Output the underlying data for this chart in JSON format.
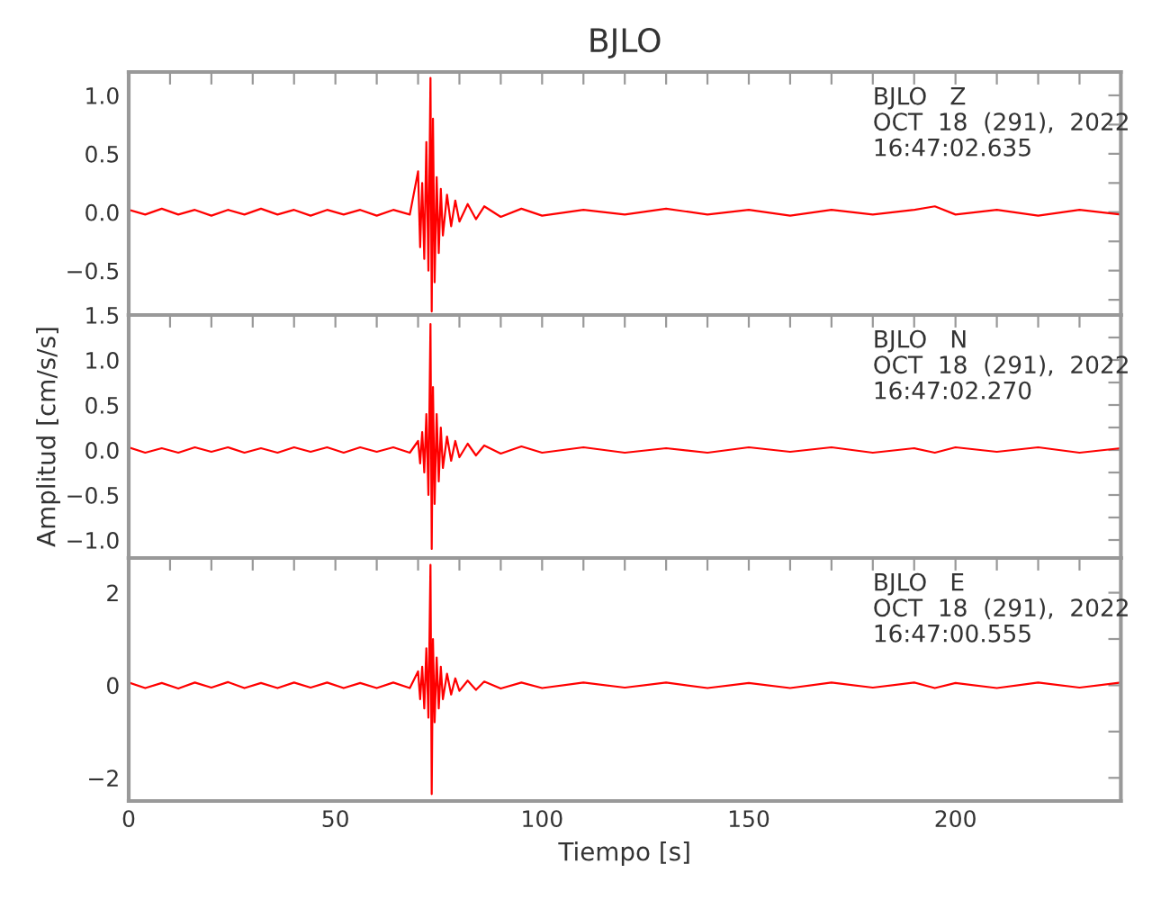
{
  "chart_data": [
    {
      "type": "line",
      "title": "BJLO",
      "annotations": [
        "BJLO   Z\nOCT  18  (291),  2022\n16:47:02.635"
      ],
      "tick_labels": "y",
      "grid": false,
      "marker": "none",
      "line_style": "solid",
      "xlim": [
        0,
        240
      ],
      "xticks": [
        0,
        {
          "value": 10,
          "label": null
        },
        {
          "value": 20,
          "label": null
        },
        {
          "value": 30,
          "label": null
        },
        {
          "value": 40,
          "label": null
        },
        50,
        {
          "value": 60,
          "label": null
        },
        {
          "value": 70,
          "label": null
        },
        {
          "value": 80,
          "label": null
        },
        {
          "value": 90,
          "label": null
        },
        100,
        {
          "value": 110,
          "label": null
        },
        {
          "value": 120,
          "label": null
        },
        {
          "value": 130,
          "label": null
        },
        {
          "value": 140,
          "label": null
        },
        150,
        {
          "value": 160,
          "label": null
        },
        {
          "value": 170,
          "label": null
        },
        {
          "value": 180,
          "label": null
        },
        {
          "value": 190,
          "label": null
        },
        200,
        {
          "value": 210,
          "label": null
        },
        {
          "value": 220,
          "label": null
        },
        {
          "value": 230,
          "label": null
        }
      ],
      "ylim": [
        -0.88,
        1.2
      ],
      "yticks": [
        {
          "value": -0.75,
          "label": null
        },
        {
          "value": -0.5,
          "label": "−0.5"
        },
        {
          "value": -0.25,
          "label": null
        },
        {
          "value": 0,
          "label": "0.0"
        },
        {
          "value": 0.25,
          "label": null
        },
        0.5,
        {
          "value": 0.75,
          "label": null
        },
        {
          "value": 1.0,
          "label": "1.0"
        }
      ],
      "x": [
        0,
        4,
        8,
        12,
        16,
        20,
        24,
        28,
        32,
        36,
        40,
        44,
        48,
        52,
        56,
        60,
        64,
        68,
        70,
        70.5,
        71,
        71.5,
        72,
        72.5,
        73,
        73.3,
        73.6,
        74,
        74.5,
        75,
        75.5,
        76,
        77,
        78,
        79,
        80,
        82,
        84,
        86,
        90,
        95,
        100,
        110,
        120,
        130,
        140,
        150,
        160,
        170,
        180,
        190,
        195,
        200,
        210,
        220,
        230,
        240
      ],
      "series": [
        {
          "color": "#ff0000",
          "values": [
            0.02,
            -0.02,
            0.03,
            -0.02,
            0.02,
            -0.03,
            0.02,
            -0.02,
            0.03,
            -0.02,
            0.02,
            -0.03,
            0.02,
            -0.02,
            0.02,
            -0.03,
            0.02,
            -0.02,
            0.35,
            -0.3,
            0.25,
            -0.4,
            0.6,
            -0.5,
            1.15,
            -0.85,
            0.8,
            -0.6,
            0.3,
            -0.35,
            0.2,
            -0.2,
            0.15,
            -0.12,
            0.1,
            -0.08,
            0.07,
            -0.06,
            0.05,
            -0.04,
            0.03,
            -0.03,
            0.02,
            -0.02,
            0.03,
            -0.02,
            0.02,
            -0.03,
            0.02,
            -0.02,
            0.02,
            0.05,
            -0.02,
            0.02,
            -0.03,
            0.02,
            -0.02
          ]
        }
      ]
    },
    {
      "type": "line",
      "ylabel": "Amplitud [cm/s/s]",
      "annotations": [
        "BJLO   N\nOCT  18  (291),  2022\n16:47:02.270"
      ],
      "tick_labels": "y",
      "grid": false,
      "marker": "none",
      "line_style": "solid",
      "xlim": [
        0,
        240
      ],
      "xticks": [
        0,
        {
          "value": 10,
          "label": null
        },
        {
          "value": 20,
          "label": null
        },
        {
          "value": 30,
          "label": null
        },
        {
          "value": 40,
          "label": null
        },
        50,
        {
          "value": 60,
          "label": null
        },
        {
          "value": 70,
          "label": null
        },
        {
          "value": 80,
          "label": null
        },
        {
          "value": 90,
          "label": null
        },
        100,
        {
          "value": 110,
          "label": null
        },
        {
          "value": 120,
          "label": null
        },
        {
          "value": 130,
          "label": null
        },
        {
          "value": 140,
          "label": null
        },
        150,
        {
          "value": 160,
          "label": null
        },
        {
          "value": 170,
          "label": null
        },
        {
          "value": 180,
          "label": null
        },
        {
          "value": 190,
          "label": null
        },
        200,
        {
          "value": 210,
          "label": null
        },
        {
          "value": 220,
          "label": null
        },
        {
          "value": 230,
          "label": null
        }
      ],
      "ylim": [
        -1.2,
        1.5
      ],
      "yticks": [
        {
          "value": -1.0,
          "label": "−1.0"
        },
        {
          "value": -0.75,
          "label": null
        },
        {
          "value": -0.5,
          "label": "−0.5"
        },
        {
          "value": -0.25,
          "label": null
        },
        {
          "value": 0,
          "label": "0.0"
        },
        {
          "value": 0.25,
          "label": null
        },
        0.5,
        {
          "value": 0.75,
          "label": null
        },
        {
          "value": 1.0,
          "label": "1.0"
        },
        {
          "value": 1.25,
          "label": null
        },
        1.5
      ],
      "x": [
        0,
        4,
        8,
        12,
        16,
        20,
        24,
        28,
        32,
        36,
        40,
        44,
        48,
        52,
        56,
        60,
        64,
        68,
        70,
        70.5,
        71,
        71.5,
        72,
        72.5,
        73,
        73.3,
        73.6,
        74,
        74.5,
        75,
        75.5,
        76,
        77,
        78,
        79,
        80,
        82,
        84,
        86,
        90,
        95,
        100,
        110,
        120,
        130,
        140,
        150,
        160,
        170,
        180,
        190,
        195,
        200,
        210,
        220,
        230,
        240
      ],
      "series": [
        {
          "color": "#ff0000",
          "values": [
            0.03,
            -0.03,
            0.02,
            -0.03,
            0.03,
            -0.02,
            0.03,
            -0.03,
            0.02,
            -0.03,
            0.03,
            -0.02,
            0.03,
            -0.03,
            0.03,
            -0.02,
            0.03,
            -0.03,
            0.1,
            -0.15,
            0.2,
            -0.25,
            0.4,
            -0.5,
            1.4,
            -1.1,
            0.7,
            -0.6,
            0.4,
            -0.35,
            0.25,
            -0.2,
            0.15,
            -0.12,
            0.1,
            -0.08,
            0.07,
            -0.06,
            0.05,
            -0.04,
            0.04,
            -0.03,
            0.03,
            -0.03,
            0.02,
            -0.03,
            0.03,
            -0.02,
            0.03,
            -0.03,
            0.02,
            -0.03,
            0.03,
            -0.02,
            0.03,
            -0.03,
            0.02
          ]
        }
      ]
    },
    {
      "type": "line",
      "xlabel": "Tiempo [s]",
      "annotations": [
        "BJLO   E\nOCT  18  (291),  2022\n16:47:00.555"
      ],
      "grid": false,
      "marker": "none",
      "line_style": "solid",
      "xlim": [
        0,
        240
      ],
      "xticks": [
        0,
        {
          "value": 10,
          "label": null
        },
        {
          "value": 20,
          "label": null
        },
        {
          "value": 30,
          "label": null
        },
        {
          "value": 40,
          "label": null
        },
        50,
        {
          "value": 60,
          "label": null
        },
        {
          "value": 70,
          "label": null
        },
        {
          "value": 80,
          "label": null
        },
        {
          "value": 90,
          "label": null
        },
        100,
        {
          "value": 110,
          "label": null
        },
        {
          "value": 120,
          "label": null
        },
        {
          "value": 130,
          "label": null
        },
        {
          "value": 140,
          "label": null
        },
        150,
        {
          "value": 160,
          "label": null
        },
        {
          "value": 170,
          "label": null
        },
        {
          "value": 180,
          "label": null
        },
        {
          "value": 190,
          "label": null
        },
        200,
        {
          "value": 210,
          "label": null
        },
        {
          "value": 220,
          "label": null
        },
        {
          "value": 230,
          "label": null
        }
      ],
      "ylim": [
        -2.5,
        2.75
      ],
      "yticks": [
        {
          "value": -2,
          "label": "−2"
        },
        {
          "value": -1,
          "label": null
        },
        0,
        {
          "value": 1,
          "label": null
        },
        2
      ],
      "x": [
        0,
        4,
        8,
        12,
        16,
        20,
        24,
        28,
        32,
        36,
        40,
        44,
        48,
        52,
        56,
        60,
        64,
        68,
        70,
        70.5,
        71,
        71.5,
        72,
        72.5,
        73,
        73.3,
        73.6,
        74,
        74.5,
        75,
        75.5,
        76,
        77,
        78,
        79,
        80,
        82,
        84,
        86,
        90,
        95,
        100,
        110,
        120,
        130,
        140,
        150,
        160,
        170,
        180,
        190,
        195,
        200,
        210,
        220,
        230,
        240
      ],
      "series": [
        {
          "color": "#ff0000",
          "values": [
            0.06,
            -0.06,
            0.05,
            -0.07,
            0.06,
            -0.05,
            0.07,
            -0.06,
            0.05,
            -0.06,
            0.06,
            -0.05,
            0.06,
            -0.06,
            0.05,
            -0.06,
            0.06,
            -0.06,
            0.3,
            -0.3,
            0.4,
            -0.5,
            0.8,
            -0.7,
            2.6,
            -2.35,
            1.0,
            -0.8,
            0.6,
            -0.5,
            0.4,
            -0.3,
            0.25,
            -0.2,
            0.15,
            -0.12,
            0.1,
            -0.1,
            0.08,
            -0.07,
            0.06,
            -0.06,
            0.06,
            -0.05,
            0.06,
            -0.06,
            0.05,
            -0.06,
            0.06,
            -0.05,
            0.06,
            -0.06,
            0.05,
            -0.06,
            0.06,
            -0.05,
            0.06
          ]
        }
      ]
    }
  ]
}
